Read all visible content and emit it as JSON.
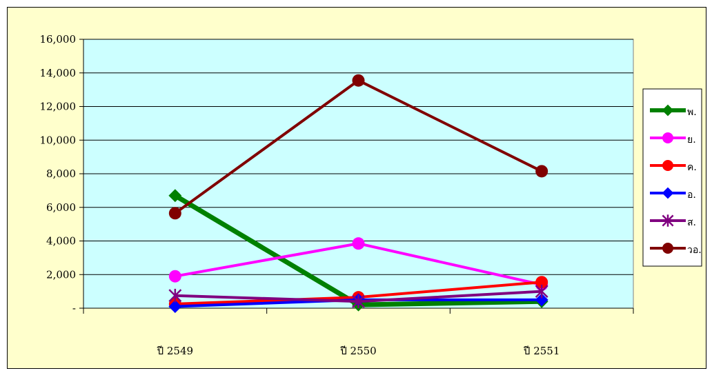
{
  "chart_data": {
    "type": "line",
    "categories": [
      "ปี 2549",
      "ปี 2550",
      "ปี 2551"
    ],
    "y_ticks": [
      "-",
      "2,000",
      "4,000",
      "6,000",
      "8,000",
      "10,000",
      "12,000",
      "14,000",
      "16,000"
    ],
    "ylim": [
      0,
      16000
    ],
    "grid": "horizontal",
    "legend_position": "right",
    "plot_background": "#ccffff",
    "chart_background": "#ffffcc",
    "series": [
      {
        "name": "พ.",
        "color": "#008000",
        "marker": "diamond",
        "values": [
          6700,
          200,
          400
        ]
      },
      {
        "name": "ย.",
        "color": "#ff00ff",
        "marker": "circle",
        "values": [
          1900,
          3850,
          1400
        ]
      },
      {
        "name": "ค.",
        "color": "#ff0000",
        "marker": "circle",
        "values": [
          250,
          650,
          1550
        ]
      },
      {
        "name": "อ.",
        "color": "#0000ff",
        "marker": "diamond",
        "values": [
          100,
          500,
          500
        ]
      },
      {
        "name": "ส.",
        "color": "#800080",
        "marker": "asterisk",
        "values": [
          750,
          400,
          1000
        ]
      },
      {
        "name": "วอ.",
        "color": "#800000",
        "marker": "circle",
        "values": [
          5650,
          13550,
          8150
        ]
      }
    ]
  }
}
